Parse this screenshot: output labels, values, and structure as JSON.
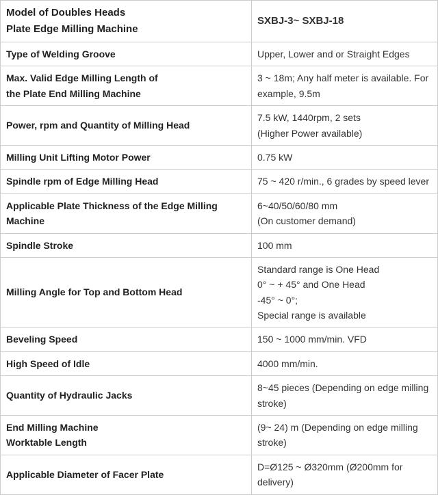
{
  "table": {
    "border_color": "#cccccc",
    "header_value_color": "#0070c0",
    "label_fontweight": "bold",
    "rows": [
      {
        "label": "Model of Doubles Heads<br>Plate Edge Milling Machine",
        "value": "SXBJ-3~ SXBJ-18",
        "header": true,
        "label_class": "model-label"
      },
      {
        "label": "Type of Welding Groove",
        "value": "Upper, Lower and or Straight Edges"
      },
      {
        "label": " Max. Valid Edge Milling Length of<br>the Plate End Milling Machine",
        "value": "3 ~ 18m;  Any half meter is available. For example, 9.5m"
      },
      {
        "label": " Power, rpm and Quantity of Milling Head",
        "value": "7.5 kW, 1440rpm, 2 sets<br>(Higher Power available)"
      },
      {
        "label": " Milling Unit Lifting Motor Power",
        "value": " 0.75 kW"
      },
      {
        "label": " Spindle rpm of Edge Milling Head",
        "value": " 75 ~ 420 r/min.,  6 grades by speed lever"
      },
      {
        "label": " Applicable Plate Thickness of the Edge Milling Machine",
        "value": "6~40/50/60/80 mm<br>(On customer demand)"
      },
      {
        "label": "Spindle Stroke",
        "value": "100 mm"
      },
      {
        "label": "Milling Angle for Top and Bottom Head",
        "value": " Standard range is One Head<br>0° ~ + 45° and One Head<br>-45° ~ 0°;<br>Special range is available"
      },
      {
        "label": " Beveling Speed",
        "value": " 150 ~ 1000 mm/min. VFD"
      },
      {
        "label": "High Speed of Idle",
        "value": "4000 mm/min."
      },
      {
        "label": "Quantity of Hydraulic Jacks",
        "value": "8~45 pieces (Depending on edge milling stroke)"
      },
      {
        "label": "End Milling Machine<br>Worktable Length",
        "value": "(9~ 24) m (Depending on edge milling stroke)"
      },
      {
        "label": "Applicable Diameter of Facer Plate",
        "value": "D=Ø125 ~ Ø320mm (Ø200mm for delivery)"
      }
    ]
  }
}
